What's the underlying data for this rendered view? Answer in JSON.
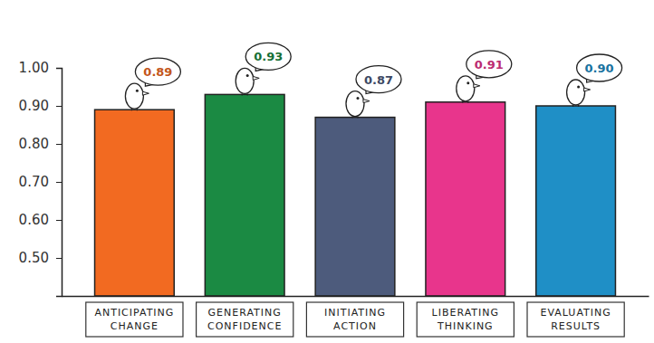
{
  "chart_data": {
    "type": "bar",
    "categories": [
      "ANTICIPATING CHANGE",
      "GENERATING CONFIDENCE",
      "INITIATING ACTION",
      "LIBERATING THINKING",
      "EVALUATING RESULTS"
    ],
    "values": [
      0.89,
      0.93,
      0.87,
      0.91,
      0.9
    ],
    "value_labels": [
      "0.89",
      "0.93",
      "0.87",
      "0.91",
      "0.90"
    ],
    "colors": [
      "#f26a21",
      "#1b8a43",
      "#4d5b7c",
      "#e8358c",
      "#1f8fc6"
    ],
    "ylim": [
      0.4,
      1.0
    ],
    "yticks": [
      {
        "value": 0.5,
        "label": "0.50"
      },
      {
        "value": 0.6,
        "label": "0.60"
      },
      {
        "value": 0.7,
        "label": "0.70"
      },
      {
        "value": 0.8,
        "label": "0.80"
      },
      {
        "value": 0.9,
        "label": "0.90"
      },
      {
        "value": 1.0,
        "label": "1.00"
      }
    ],
    "grid": false,
    "data_labels": true
  }
}
